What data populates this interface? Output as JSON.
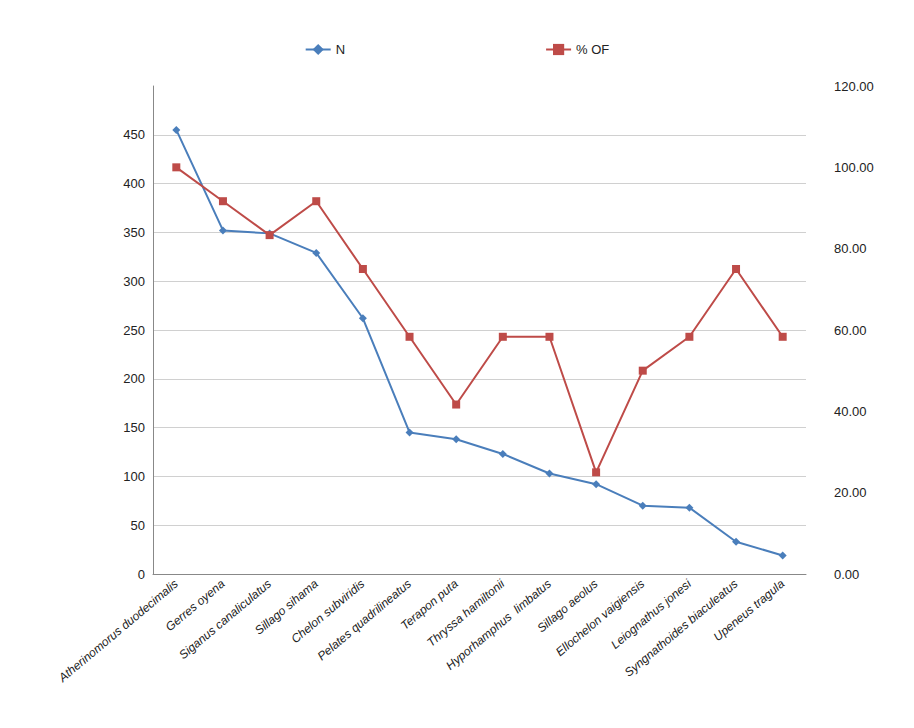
{
  "chart_data": {
    "type": "line",
    "categories": [
      "Atherinomorus duodecimalis",
      "Gerres oyena",
      "Siganus canaliculatus",
      "Sillago sihama",
      "Chelon subviridis",
      "Pelates quadrilineatus",
      "Terapon puta",
      "Thryssa hamiltonii",
      "Hyporhamphus  limbatus",
      "Sillago aeolus",
      "Ellochelon vaigiensis",
      "Leiognathus jonesi",
      "Syngnathoides biaculeatus",
      "Upeneus tragula"
    ],
    "series": [
      {
        "name": "N",
        "color": "#4a7ebb",
        "marker": "diamond",
        "values": [
          455,
          352,
          349,
          329,
          262,
          145,
          138,
          123,
          103,
          92,
          70,
          68,
          33,
          19
        ]
      },
      {
        "name": "% OF",
        "color": "#be4b48",
        "marker": "square",
        "axis": "y2",
        "values": [
          100,
          91.67,
          83.33,
          91.67,
          75,
          58.33,
          41.67,
          58.33,
          58.33,
          25,
          50,
          58.33,
          75,
          58.33
        ]
      }
    ],
    "ylim": [
      0,
      500
    ],
    "yticks": [
      0,
      50,
      100,
      150,
      200,
      250,
      300,
      350,
      400,
      450
    ],
    "y2lim": [
      0,
      120
    ],
    "y2ticks": [
      {
        "value": 0,
        "label": "0.00"
      },
      {
        "value": 20,
        "label": "20.00"
      },
      {
        "value": 40,
        "label": "40.00"
      },
      {
        "value": 60,
        "label": "60.00"
      },
      {
        "value": 80,
        "label": "80.00"
      },
      {
        "value": 100,
        "label": "100.00"
      },
      {
        "value": 120,
        "label": "120.00"
      }
    ],
    "grid": true,
    "legend": "top"
  }
}
